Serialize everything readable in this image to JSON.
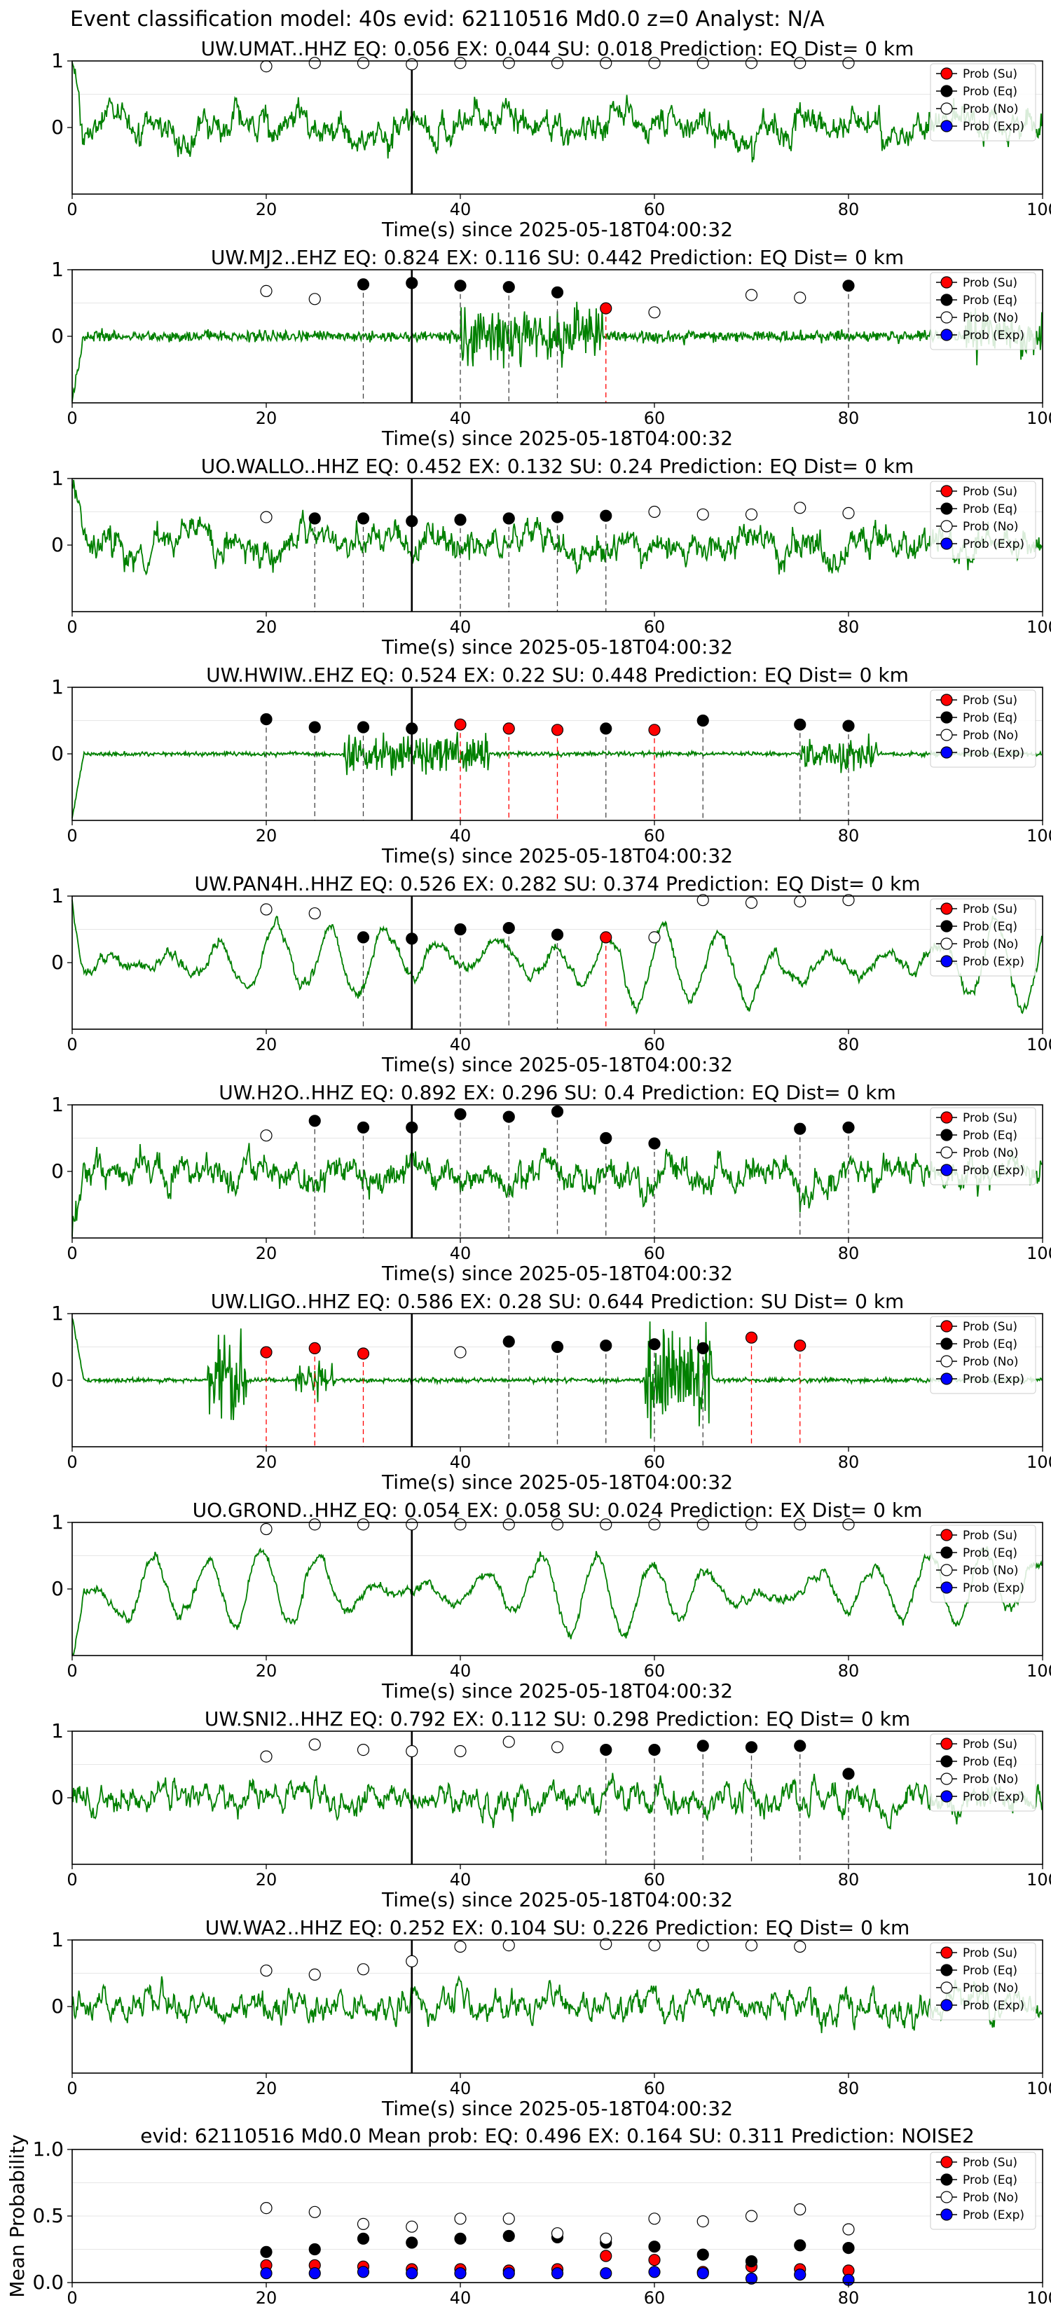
{
  "suptitle": "Event classification model: 40s evid: 62110516 Md0.0 z=0 Analyst: N/A",
  "legend": [
    "Prob (Su)",
    "Prob (Eq)",
    "Prob (No)",
    "Prob (Exp)"
  ],
  "colors": {
    "su": "#ff0000",
    "eq": "#000000",
    "no": "#ffffff",
    "exp": "#0000ff",
    "wave": "#008000",
    "vline": "#000000"
  },
  "chart_data": [
    {
      "type": "line",
      "title": "UW.UMAT..HHZ   EQ: 0.056   EX: 0.044   SU: 0.018   Prediction: EQ    Dist= 0 km",
      "xlabel": "Time(s) since 2025-05-18T04:00:32",
      "xlim": [
        0,
        100
      ],
      "ylim": [
        -1,
        1
      ],
      "xticks": [
        0,
        20,
        40,
        60,
        80,
        100
      ],
      "yticks": [
        0,
        1
      ],
      "vline": 35,
      "wave": "noisy",
      "markers": [
        {
          "x": 20,
          "y": 0.92,
          "c": "no"
        },
        {
          "x": 25,
          "y": 0.97,
          "c": "no"
        },
        {
          "x": 30,
          "y": 0.97,
          "c": "no"
        },
        {
          "x": 35,
          "y": 0.95,
          "c": "no"
        },
        {
          "x": 40,
          "y": 0.97,
          "c": "no"
        },
        {
          "x": 45,
          "y": 0.97,
          "c": "no"
        },
        {
          "x": 50,
          "y": 0.97,
          "c": "no"
        },
        {
          "x": 55,
          "y": 0.97,
          "c": "no"
        },
        {
          "x": 60,
          "y": 0.97,
          "c": "no"
        },
        {
          "x": 65,
          "y": 0.97,
          "c": "no"
        },
        {
          "x": 70,
          "y": 0.97,
          "c": "no"
        },
        {
          "x": 75,
          "y": 0.97,
          "c": "no"
        },
        {
          "x": 80,
          "y": 0.97,
          "c": "no"
        }
      ]
    },
    {
      "type": "line",
      "title": "UW.MJ2..EHZ   EQ: 0.824   EX: 0.116   SU: 0.442   Prediction: EQ    Dist= 0 km",
      "xlabel": "Time(s) since 2025-05-18T04:00:32",
      "xlim": [
        0,
        100
      ],
      "ylim": [
        -1,
        1
      ],
      "xticks": [
        0,
        20,
        40,
        60,
        80,
        100
      ],
      "yticks": [
        0,
        1
      ],
      "vline": 35,
      "wave": "quiet",
      "markers": [
        {
          "x": 20,
          "y": 0.68,
          "c": "no"
        },
        {
          "x": 25,
          "y": 0.56,
          "c": "no"
        },
        {
          "x": 30,
          "y": 0.78,
          "c": "eq"
        },
        {
          "x": 35,
          "y": 0.8,
          "c": "eq"
        },
        {
          "x": 40,
          "y": 0.76,
          "c": "eq"
        },
        {
          "x": 45,
          "y": 0.74,
          "c": "eq"
        },
        {
          "x": 50,
          "y": 0.66,
          "c": "eq"
        },
        {
          "x": 55,
          "y": 0.42,
          "c": "su"
        },
        {
          "x": 60,
          "y": 0.36,
          "c": "no"
        },
        {
          "x": 70,
          "y": 0.62,
          "c": "no"
        },
        {
          "x": 75,
          "y": 0.58,
          "c": "no"
        },
        {
          "x": 80,
          "y": 0.76,
          "c": "eq"
        }
      ]
    },
    {
      "type": "line",
      "title": "UO.WALLO..HHZ   EQ: 0.452   EX: 0.132   SU: 0.24   Prediction: EQ    Dist= 0 km",
      "xlabel": "Time(s) since 2025-05-18T04:00:32",
      "xlim": [
        0,
        100
      ],
      "ylim": [
        -1,
        1
      ],
      "xticks": [
        0,
        20,
        40,
        60,
        80,
        100
      ],
      "yticks": [
        0,
        1
      ],
      "vline": 35,
      "wave": "noisy",
      "markers": [
        {
          "x": 20,
          "y": 0.42,
          "c": "no"
        },
        {
          "x": 25,
          "y": 0.4,
          "c": "eq"
        },
        {
          "x": 30,
          "y": 0.4,
          "c": "eq"
        },
        {
          "x": 35,
          "y": 0.36,
          "c": "eq"
        },
        {
          "x": 40,
          "y": 0.38,
          "c": "eq"
        },
        {
          "x": 45,
          "y": 0.4,
          "c": "eq"
        },
        {
          "x": 50,
          "y": 0.42,
          "c": "eq"
        },
        {
          "x": 55,
          "y": 0.44,
          "c": "eq"
        },
        {
          "x": 60,
          "y": 0.5,
          "c": "no"
        },
        {
          "x": 65,
          "y": 0.46,
          "c": "no"
        },
        {
          "x": 70,
          "y": 0.46,
          "c": "no"
        },
        {
          "x": 75,
          "y": 0.56,
          "c": "no"
        },
        {
          "x": 80,
          "y": 0.48,
          "c": "no"
        }
      ]
    },
    {
      "type": "line",
      "title": "UW.HWIW..EHZ   EQ: 0.524   EX: 0.22   SU: 0.448   Prediction: EQ    Dist= 0 km",
      "xlabel": "Time(s) since 2025-05-18T04:00:32",
      "xlim": [
        0,
        100
      ],
      "ylim": [
        -1,
        1
      ],
      "xticks": [
        0,
        20,
        40,
        60,
        80,
        100
      ],
      "yticks": [
        0,
        1
      ],
      "vline": 35,
      "wave": "burst",
      "markers": [
        {
          "x": 20,
          "y": 0.52,
          "c": "eq"
        },
        {
          "x": 25,
          "y": 0.4,
          "c": "eq"
        },
        {
          "x": 30,
          "y": 0.4,
          "c": "eq"
        },
        {
          "x": 35,
          "y": 0.38,
          "c": "eq"
        },
        {
          "x": 40,
          "y": 0.44,
          "c": "su"
        },
        {
          "x": 45,
          "y": 0.38,
          "c": "su"
        },
        {
          "x": 50,
          "y": 0.36,
          "c": "su"
        },
        {
          "x": 55,
          "y": 0.38,
          "c": "eq"
        },
        {
          "x": 60,
          "y": 0.36,
          "c": "su"
        },
        {
          "x": 65,
          "y": 0.5,
          "c": "eq"
        },
        {
          "x": 75,
          "y": 0.44,
          "c": "eq"
        },
        {
          "x": 80,
          "y": 0.42,
          "c": "eq"
        }
      ]
    },
    {
      "type": "line",
      "title": "UW.PAN4H..HHZ   EQ: 0.526   EX: 0.282   SU: 0.374   Prediction: EQ    Dist= 0 km",
      "xlabel": "Time(s) since 2025-05-18T04:00:32",
      "xlim": [
        0,
        100
      ],
      "ylim": [
        -1,
        1
      ],
      "xticks": [
        0,
        20,
        40,
        60,
        80,
        100
      ],
      "yticks": [
        0,
        1
      ],
      "vline": 35,
      "wave": "smooth",
      "markers": [
        {
          "x": 20,
          "y": 0.8,
          "c": "no"
        },
        {
          "x": 25,
          "y": 0.74,
          "c": "no"
        },
        {
          "x": 30,
          "y": 0.38,
          "c": "eq"
        },
        {
          "x": 35,
          "y": 0.36,
          "c": "eq"
        },
        {
          "x": 40,
          "y": 0.5,
          "c": "eq"
        },
        {
          "x": 45,
          "y": 0.52,
          "c": "eq"
        },
        {
          "x": 50,
          "y": 0.42,
          "c": "eq"
        },
        {
          "x": 55,
          "y": 0.38,
          "c": "su"
        },
        {
          "x": 60,
          "y": 0.38,
          "c": "no"
        },
        {
          "x": 65,
          "y": 0.94,
          "c": "no"
        },
        {
          "x": 70,
          "y": 0.9,
          "c": "no"
        },
        {
          "x": 75,
          "y": 0.92,
          "c": "no"
        },
        {
          "x": 80,
          "y": 0.94,
          "c": "no"
        }
      ]
    },
    {
      "type": "line",
      "title": "UW.H2O..HHZ   EQ: 0.892   EX: 0.296   SU: 0.4   Prediction: EQ    Dist= 0 km",
      "xlabel": "Time(s) since 2025-05-18T04:00:32",
      "xlim": [
        0,
        100
      ],
      "ylim": [
        -1,
        1
      ],
      "xticks": [
        0,
        20,
        40,
        60,
        80,
        100
      ],
      "yticks": [
        0,
        1
      ],
      "vline": 35,
      "wave": "noisy",
      "markers": [
        {
          "x": 20,
          "y": 0.54,
          "c": "no"
        },
        {
          "x": 25,
          "y": 0.76,
          "c": "eq"
        },
        {
          "x": 30,
          "y": 0.66,
          "c": "eq"
        },
        {
          "x": 35,
          "y": 0.66,
          "c": "eq"
        },
        {
          "x": 40,
          "y": 0.86,
          "c": "eq"
        },
        {
          "x": 45,
          "y": 0.82,
          "c": "eq"
        },
        {
          "x": 50,
          "y": 0.9,
          "c": "eq"
        },
        {
          "x": 55,
          "y": 0.5,
          "c": "eq"
        },
        {
          "x": 60,
          "y": 0.42,
          "c": "eq"
        },
        {
          "x": 75,
          "y": 0.64,
          "c": "eq"
        },
        {
          "x": 80,
          "y": 0.66,
          "c": "eq"
        }
      ]
    },
    {
      "type": "line",
      "title": "UW.LIGO..HHZ   EQ: 0.586   EX: 0.28   SU: 0.644   Prediction: SU    Dist= 0 km",
      "xlabel": "Time(s) since 2025-05-18T04:00:32",
      "xlim": [
        0,
        100
      ],
      "ylim": [
        -1,
        1
      ],
      "xticks": [
        0,
        20,
        40,
        60,
        80,
        100
      ],
      "yticks": [
        0,
        1
      ],
      "vline": 35,
      "wave": "bursts2",
      "markers": [
        {
          "x": 20,
          "y": 0.42,
          "c": "su"
        },
        {
          "x": 25,
          "y": 0.48,
          "c": "su"
        },
        {
          "x": 30,
          "y": 0.4,
          "c": "su"
        },
        {
          "x": 40,
          "y": 0.42,
          "c": "no"
        },
        {
          "x": 45,
          "y": 0.58,
          "c": "eq"
        },
        {
          "x": 50,
          "y": 0.5,
          "c": "eq"
        },
        {
          "x": 55,
          "y": 0.52,
          "c": "eq"
        },
        {
          "x": 60,
          "y": 0.54,
          "c": "eq"
        },
        {
          "x": 65,
          "y": 0.48,
          "c": "eq"
        },
        {
          "x": 70,
          "y": 0.64,
          "c": "su"
        },
        {
          "x": 75,
          "y": 0.52,
          "c": "su"
        }
      ]
    },
    {
      "type": "line",
      "title": "UO.GROND..HHZ   EQ: 0.054   EX: 0.058   SU: 0.024   Prediction: EX    Dist= 0 km",
      "xlabel": "Time(s) since 2025-05-18T04:00:32",
      "xlim": [
        0,
        100
      ],
      "ylim": [
        -1,
        1
      ],
      "xticks": [
        0,
        20,
        40,
        60,
        80,
        100
      ],
      "yticks": [
        0,
        1
      ],
      "vline": 35,
      "wave": "smooth",
      "markers": [
        {
          "x": 20,
          "y": 0.9,
          "c": "no"
        },
        {
          "x": 25,
          "y": 0.97,
          "c": "no"
        },
        {
          "x": 30,
          "y": 0.97,
          "c": "no"
        },
        {
          "x": 35,
          "y": 0.97,
          "c": "no"
        },
        {
          "x": 40,
          "y": 0.97,
          "c": "no"
        },
        {
          "x": 45,
          "y": 0.97,
          "c": "no"
        },
        {
          "x": 50,
          "y": 0.97,
          "c": "no"
        },
        {
          "x": 55,
          "y": 0.97,
          "c": "no"
        },
        {
          "x": 60,
          "y": 0.97,
          "c": "no"
        },
        {
          "x": 65,
          "y": 0.97,
          "c": "no"
        },
        {
          "x": 70,
          "y": 0.97,
          "c": "no"
        },
        {
          "x": 75,
          "y": 0.97,
          "c": "no"
        },
        {
          "x": 80,
          "y": 0.97,
          "c": "no"
        }
      ]
    },
    {
      "type": "line",
      "title": "UW.SNI2..HHZ   EQ: 0.792   EX: 0.112   SU: 0.298   Prediction: EQ    Dist= 0 km",
      "xlabel": "Time(s) since 2025-05-18T04:00:32",
      "xlim": [
        0,
        100
      ],
      "ylim": [
        -1,
        1
      ],
      "xticks": [
        0,
        20,
        40,
        60,
        80,
        100
      ],
      "yticks": [
        0,
        1
      ],
      "vline": 35,
      "wave": "dense",
      "markers": [
        {
          "x": 20,
          "y": 0.62,
          "c": "no"
        },
        {
          "x": 25,
          "y": 0.8,
          "c": "no"
        },
        {
          "x": 30,
          "y": 0.72,
          "c": "no"
        },
        {
          "x": 35,
          "y": 0.7,
          "c": "no"
        },
        {
          "x": 40,
          "y": 0.7,
          "c": "no"
        },
        {
          "x": 45,
          "y": 0.84,
          "c": "no"
        },
        {
          "x": 50,
          "y": 0.76,
          "c": "no"
        },
        {
          "x": 55,
          "y": 0.72,
          "c": "eq"
        },
        {
          "x": 60,
          "y": 0.72,
          "c": "eq"
        },
        {
          "x": 65,
          "y": 0.78,
          "c": "eq"
        },
        {
          "x": 70,
          "y": 0.76,
          "c": "eq"
        },
        {
          "x": 75,
          "y": 0.78,
          "c": "eq"
        },
        {
          "x": 80,
          "y": 0.36,
          "c": "eq"
        }
      ]
    },
    {
      "type": "line",
      "title": "UW.WA2..HHZ   EQ: 0.252   EX: 0.104   SU: 0.226   Prediction: EQ    Dist= 0 km",
      "xlabel": "Time(s) since 2025-05-18T04:00:32",
      "xlim": [
        0,
        100
      ],
      "ylim": [
        -1,
        1
      ],
      "xticks": [
        0,
        20,
        40,
        60,
        80,
        100
      ],
      "yticks": [
        0,
        1
      ],
      "vline": 35,
      "wave": "dense",
      "markers": [
        {
          "x": 20,
          "y": 0.54,
          "c": "no"
        },
        {
          "x": 25,
          "y": 0.48,
          "c": "no"
        },
        {
          "x": 30,
          "y": 0.56,
          "c": "no"
        },
        {
          "x": 35,
          "y": 0.68,
          "c": "no"
        },
        {
          "x": 40,
          "y": 0.9,
          "c": "no"
        },
        {
          "x": 45,
          "y": 0.92,
          "c": "no"
        },
        {
          "x": 55,
          "y": 0.94,
          "c": "no"
        },
        {
          "x": 60,
          "y": 0.92,
          "c": "no"
        },
        {
          "x": 65,
          "y": 0.92,
          "c": "no"
        },
        {
          "x": 70,
          "y": 0.92,
          "c": "no"
        },
        {
          "x": 75,
          "y": 0.9,
          "c": "no"
        }
      ]
    },
    {
      "type": "scatter",
      "title": "evid: 62110516  Md0.0   Mean prob:   EQ: 0.496  EX: 0.164  SU: 0.311   Prediction: NOISE2",
      "ylabel": "Mean Probability",
      "xlim": [
        0,
        100
      ],
      "ylim": [
        0,
        1
      ],
      "xticks": [
        0,
        20,
        40,
        60,
        80,
        100
      ],
      "yticks": [
        0,
        0.5,
        1
      ],
      "ytick_labels": [
        "0.0",
        "0.5",
        "1.0"
      ],
      "series": [
        {
          "name": "Prob (Su)",
          "c": "su",
          "points": [
            [
              20,
              0.13
            ],
            [
              25,
              0.13
            ],
            [
              30,
              0.12
            ],
            [
              35,
              0.1
            ],
            [
              40,
              0.1
            ],
            [
              45,
              0.09
            ],
            [
              50,
              0.1
            ],
            [
              55,
              0.2
            ],
            [
              60,
              0.17
            ],
            [
              65,
              0.08
            ],
            [
              70,
              0.12
            ],
            [
              75,
              0.1
            ],
            [
              80,
              0.09
            ]
          ]
        },
        {
          "name": "Prob (Eq)",
          "c": "eq",
          "points": [
            [
              20,
              0.23
            ],
            [
              25,
              0.25
            ],
            [
              30,
              0.33
            ],
            [
              35,
              0.3
            ],
            [
              40,
              0.33
            ],
            [
              45,
              0.35
            ],
            [
              50,
              0.34
            ],
            [
              55,
              0.3
            ],
            [
              60,
              0.27
            ],
            [
              65,
              0.21
            ],
            [
              70,
              0.16
            ],
            [
              75,
              0.28
            ],
            [
              80,
              0.26
            ]
          ]
        },
        {
          "name": "Prob (No)",
          "c": "no",
          "points": [
            [
              20,
              0.56
            ],
            [
              25,
              0.53
            ],
            [
              30,
              0.44
            ],
            [
              35,
              0.42
            ],
            [
              40,
              0.48
            ],
            [
              45,
              0.48
            ],
            [
              50,
              0.37
            ],
            [
              55,
              0.33
            ],
            [
              60,
              0.48
            ],
            [
              65,
              0.46
            ],
            [
              70,
              0.5
            ],
            [
              75,
              0.55
            ],
            [
              80,
              0.4
            ]
          ]
        },
        {
          "name": "Prob (Exp)",
          "c": "exp",
          "points": [
            [
              20,
              0.07
            ],
            [
              25,
              0.07
            ],
            [
              30,
              0.08
            ],
            [
              35,
              0.07
            ],
            [
              40,
              0.07
            ],
            [
              45,
              0.07
            ],
            [
              50,
              0.07
            ],
            [
              55,
              0.07
            ],
            [
              60,
              0.08
            ],
            [
              65,
              0.07
            ],
            [
              70,
              0.03
            ],
            [
              75,
              0.06
            ],
            [
              80,
              0.02
            ]
          ]
        }
      ]
    }
  ]
}
